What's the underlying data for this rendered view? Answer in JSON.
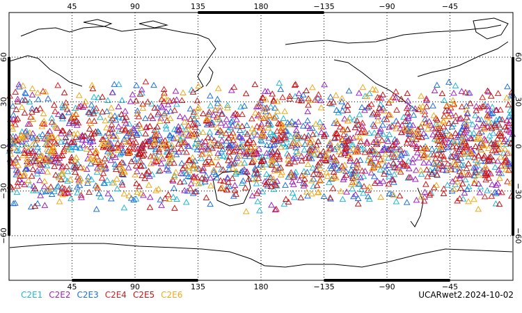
{
  "chart_data": {
    "type": "scatter",
    "projection": "equirectangular, centered on 180",
    "top_ticks": [
      "45",
      "90",
      "135",
      "180",
      "−135",
      "−90",
      "−45"
    ],
    "bottom_ticks": [
      "45",
      "90",
      "135",
      "180",
      "−135",
      "−90",
      "−45"
    ],
    "lat_ticks": [
      "60",
      "30",
      "0",
      "−30",
      "−60"
    ],
    "lon_range": [
      0,
      360
    ],
    "lat_range": [
      -90,
      90
    ],
    "grid": "dotted at every 45° longitude and 30° latitude",
    "marker": "open triangle",
    "series": [
      {
        "name": "C2E1",
        "color": "#21b6d6",
        "lat_band": [
          -45,
          45
        ]
      },
      {
        "name": "C2E2",
        "color": "#a020c8",
        "lat_band": [
          -45,
          45
        ]
      },
      {
        "name": "C2E3",
        "color": "#1f6fe0",
        "lat_band": [
          -45,
          45
        ]
      },
      {
        "name": "C2E4",
        "color": "#d81e1e",
        "lat_band": [
          -45,
          45
        ]
      },
      {
        "name": "C2E5",
        "color": "#c81010",
        "lat_band": [
          -45,
          45
        ]
      },
      {
        "name": "C2E6",
        "color": "#f0a818",
        "lat_band": [
          -45,
          45
        ]
      }
    ]
  },
  "credit": "UCARwet2.2024-10-02"
}
